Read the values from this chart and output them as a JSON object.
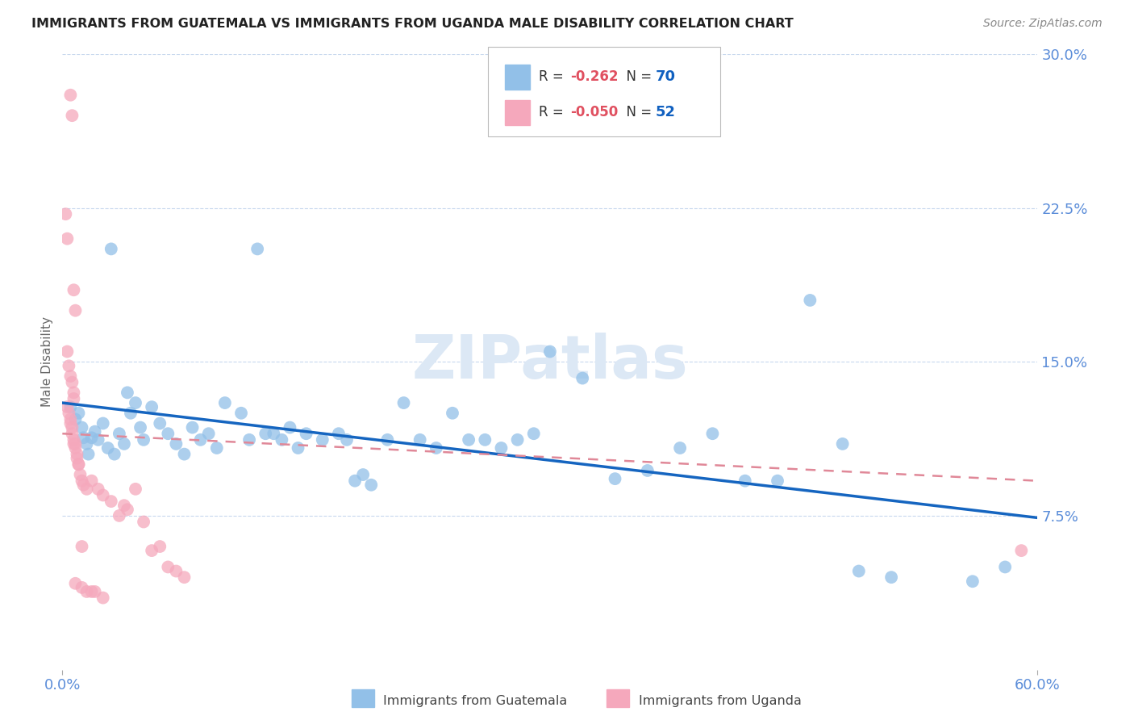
{
  "title": "IMMIGRANTS FROM GUATEMALA VS IMMIGRANTS FROM UGANDA MALE DISABILITY CORRELATION CHART",
  "source": "Source: ZipAtlas.com",
  "ylabel": "Male Disability",
  "xlim": [
    0.0,
    0.6
  ],
  "ylim": [
    0.0,
    0.3
  ],
  "xtick_labels": [
    "0.0%",
    "60.0%"
  ],
  "xtick_positions": [
    0.0,
    0.6
  ],
  "ytick_labels": [
    "30.0%",
    "22.5%",
    "15.0%",
    "7.5%"
  ],
  "ytick_positions": [
    0.3,
    0.225,
    0.15,
    0.075
  ],
  "watermark": "ZIPatlas",
  "legend_blue_r": "-0.262",
  "legend_blue_n": "70",
  "legend_pink_r": "-0.050",
  "legend_pink_n": "52",
  "blue_scatter": [
    [
      0.005,
      0.128
    ],
    [
      0.008,
      0.122
    ],
    [
      0.01,
      0.125
    ],
    [
      0.012,
      0.118
    ],
    [
      0.013,
      0.113
    ],
    [
      0.015,
      0.11
    ],
    [
      0.016,
      0.105
    ],
    [
      0.018,
      0.113
    ],
    [
      0.02,
      0.116
    ],
    [
      0.022,
      0.112
    ],
    [
      0.025,
      0.12
    ],
    [
      0.028,
      0.108
    ],
    [
      0.03,
      0.205
    ],
    [
      0.032,
      0.105
    ],
    [
      0.035,
      0.115
    ],
    [
      0.038,
      0.11
    ],
    [
      0.04,
      0.135
    ],
    [
      0.042,
      0.125
    ],
    [
      0.045,
      0.13
    ],
    [
      0.048,
      0.118
    ],
    [
      0.05,
      0.112
    ],
    [
      0.055,
      0.128
    ],
    [
      0.06,
      0.12
    ],
    [
      0.065,
      0.115
    ],
    [
      0.07,
      0.11
    ],
    [
      0.075,
      0.105
    ],
    [
      0.08,
      0.118
    ],
    [
      0.085,
      0.112
    ],
    [
      0.09,
      0.115
    ],
    [
      0.095,
      0.108
    ],
    [
      0.1,
      0.13
    ],
    [
      0.11,
      0.125
    ],
    [
      0.115,
      0.112
    ],
    [
      0.12,
      0.205
    ],
    [
      0.125,
      0.115
    ],
    [
      0.13,
      0.115
    ],
    [
      0.135,
      0.112
    ],
    [
      0.14,
      0.118
    ],
    [
      0.145,
      0.108
    ],
    [
      0.15,
      0.115
    ],
    [
      0.16,
      0.112
    ],
    [
      0.17,
      0.115
    ],
    [
      0.175,
      0.112
    ],
    [
      0.18,
      0.092
    ],
    [
      0.185,
      0.095
    ],
    [
      0.19,
      0.09
    ],
    [
      0.2,
      0.112
    ],
    [
      0.21,
      0.13
    ],
    [
      0.22,
      0.112
    ],
    [
      0.23,
      0.108
    ],
    [
      0.24,
      0.125
    ],
    [
      0.25,
      0.112
    ],
    [
      0.26,
      0.112
    ],
    [
      0.27,
      0.108
    ],
    [
      0.28,
      0.112
    ],
    [
      0.29,
      0.115
    ],
    [
      0.3,
      0.155
    ],
    [
      0.32,
      0.142
    ],
    [
      0.34,
      0.093
    ],
    [
      0.36,
      0.097
    ],
    [
      0.38,
      0.108
    ],
    [
      0.4,
      0.115
    ],
    [
      0.42,
      0.092
    ],
    [
      0.44,
      0.092
    ],
    [
      0.46,
      0.18
    ],
    [
      0.48,
      0.11
    ],
    [
      0.49,
      0.048
    ],
    [
      0.51,
      0.045
    ],
    [
      0.56,
      0.043
    ],
    [
      0.58,
      0.05
    ]
  ],
  "pink_scatter": [
    [
      0.002,
      0.222
    ],
    [
      0.003,
      0.21
    ],
    [
      0.005,
      0.28
    ],
    [
      0.006,
      0.27
    ],
    [
      0.007,
      0.185
    ],
    [
      0.008,
      0.175
    ],
    [
      0.003,
      0.155
    ],
    [
      0.004,
      0.148
    ],
    [
      0.005,
      0.143
    ],
    [
      0.006,
      0.14
    ],
    [
      0.007,
      0.135
    ],
    [
      0.007,
      0.132
    ],
    [
      0.003,
      0.128
    ],
    [
      0.004,
      0.125
    ],
    [
      0.005,
      0.122
    ],
    [
      0.005,
      0.12
    ],
    [
      0.006,
      0.118
    ],
    [
      0.006,
      0.115
    ],
    [
      0.007,
      0.112
    ],
    [
      0.007,
      0.11
    ],
    [
      0.008,
      0.11
    ],
    [
      0.008,
      0.108
    ],
    [
      0.009,
      0.105
    ],
    [
      0.009,
      0.103
    ],
    [
      0.01,
      0.1
    ],
    [
      0.01,
      0.1
    ],
    [
      0.011,
      0.095
    ],
    [
      0.012,
      0.092
    ],
    [
      0.013,
      0.09
    ],
    [
      0.015,
      0.088
    ],
    [
      0.018,
      0.092
    ],
    [
      0.022,
      0.088
    ],
    [
      0.025,
      0.085
    ],
    [
      0.03,
      0.082
    ],
    [
      0.035,
      0.075
    ],
    [
      0.038,
      0.08
    ],
    [
      0.04,
      0.078
    ],
    [
      0.045,
      0.088
    ],
    [
      0.05,
      0.072
    ],
    [
      0.055,
      0.058
    ],
    [
      0.06,
      0.06
    ],
    [
      0.065,
      0.05
    ],
    [
      0.07,
      0.048
    ],
    [
      0.075,
      0.045
    ],
    [
      0.008,
      0.042
    ],
    [
      0.012,
      0.04
    ],
    [
      0.015,
      0.038
    ],
    [
      0.018,
      0.038
    ],
    [
      0.02,
      0.038
    ],
    [
      0.025,
      0.035
    ],
    [
      0.012,
      0.06
    ],
    [
      0.59,
      0.058
    ]
  ],
  "blue_line_x": [
    0.0,
    0.6
  ],
  "blue_line_y": [
    0.13,
    0.074
  ],
  "pink_line_x": [
    0.0,
    0.6
  ],
  "pink_line_y": [
    0.115,
    0.092
  ],
  "blue_dot_color": "#92c0e8",
  "pink_dot_color": "#f5a8bc",
  "blue_line_color": "#1565c0",
  "pink_line_color": "#e08898",
  "tick_label_color": "#5b8dd9",
  "grid_color": "#c8d8ee",
  "watermark_color": "#dce8f5",
  "title_color": "#222222",
  "source_color": "#888888",
  "ylabel_color": "#666666",
  "legend_r_color": "#e05060",
  "legend_n_color": "#1060c0",
  "title_fontsize": 11.5,
  "source_fontsize": 10,
  "tick_fontsize": 13,
  "ylabel_fontsize": 11
}
